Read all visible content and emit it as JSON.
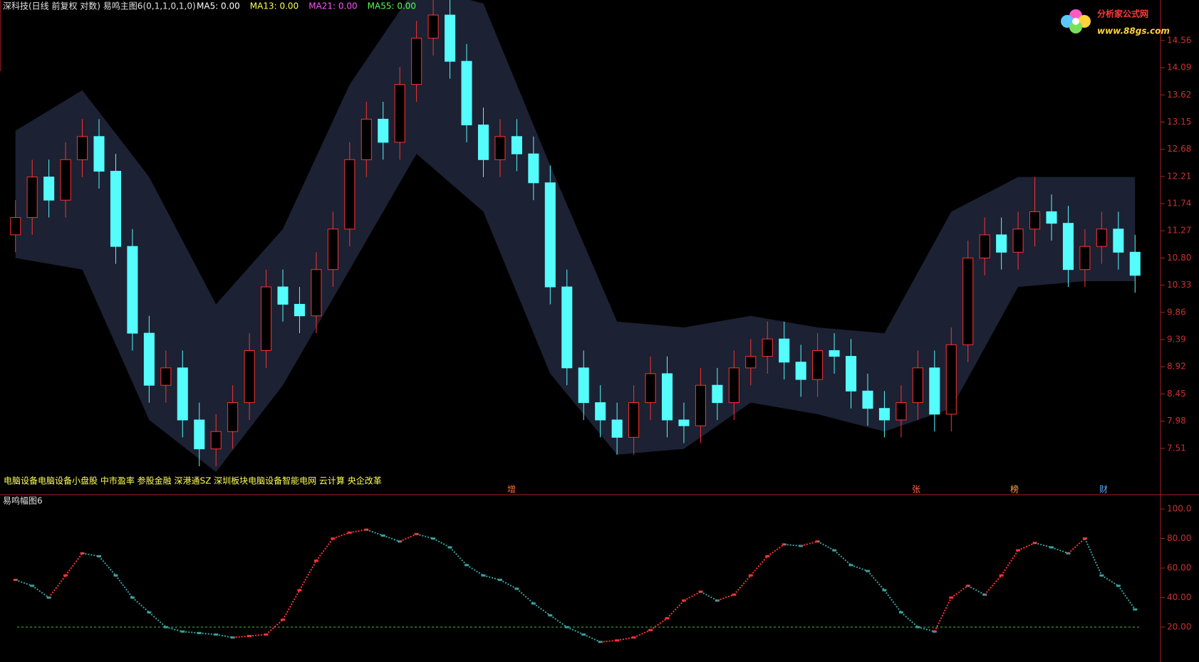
{
  "header": {
    "title": "深科技(日线 前复权 对数) 易鸣主图6(0,1,1,0,1,0)",
    "ma_labels": [
      {
        "text": "MA5: 0.00",
        "color": "#ffffff"
      },
      {
        "text": "MA13: 0.00",
        "color": "#ffff54"
      },
      {
        "text": "MA21: 0.00",
        "color": "#ff54ff"
      },
      {
        "text": "MA55: 0.00",
        "color": "#54ff54"
      }
    ]
  },
  "logo": {
    "name": "分析家公式网",
    "url": "www.88gs.com"
  },
  "concepts": "电脑设备电脑设备小盘股 中市盈率 参股金融 深港通SZ 深圳板块电脑设备智能电网 云计算 央企改革",
  "tags": [
    "增",
    "张",
    "榜",
    "财"
  ],
  "chart_data": [
    {
      "type": "candlestick",
      "open": [
        11.2,
        11.5,
        12.2,
        11.8,
        12.5,
        12.9,
        12.3,
        11.0,
        9.5,
        8.6,
        8.9,
        8.0,
        7.5,
        7.8,
        8.3,
        9.2,
        10.3,
        10.0,
        9.8,
        10.6,
        11.3,
        12.5,
        13.2,
        12.8,
        13.8,
        14.6,
        15.0,
        14.2,
        13.1,
        12.5,
        12.9,
        12.6,
        12.1,
        10.3,
        8.9,
        8.3,
        8.0,
        7.7,
        8.3,
        8.8,
        8.0,
        7.9,
        8.6,
        8.3,
        8.9,
        9.1,
        9.4,
        9.0,
        8.7,
        9.2,
        9.1,
        8.5,
        8.2,
        8.0,
        8.3,
        8.9,
        8.1,
        9.3,
        10.8,
        11.2,
        10.9,
        11.3,
        11.6,
        11.4,
        10.6,
        11.0,
        11.3,
        10.9
      ],
      "high": [
        11.8,
        12.5,
        12.5,
        12.8,
        13.2,
        13.2,
        12.6,
        11.3,
        9.8,
        9.2,
        9.2,
        8.3,
        8.1,
        8.6,
        9.5,
        10.6,
        10.6,
        10.3,
        10.9,
        11.6,
        12.8,
        13.5,
        13.5,
        14.1,
        14.9,
        15.3,
        15.3,
        14.5,
        13.4,
        13.2,
        13.2,
        12.9,
        12.4,
        10.6,
        9.2,
        8.6,
        8.3,
        8.6,
        9.1,
        9.1,
        8.3,
        8.9,
        8.9,
        9.2,
        9.4,
        9.7,
        9.7,
        9.3,
        9.5,
        9.5,
        9.4,
        8.8,
        8.5,
        8.6,
        9.2,
        9.2,
        9.6,
        11.1,
        11.5,
        11.5,
        11.6,
        12.2,
        11.9,
        11.7,
        11.3,
        11.6,
        11.6,
        11.2
      ],
      "low": [
        10.9,
        11.2,
        11.5,
        11.5,
        12.2,
        12.0,
        10.7,
        9.2,
        8.3,
        8.3,
        7.7,
        7.2,
        7.2,
        7.5,
        8.0,
        8.9,
        9.7,
        9.5,
        9.5,
        10.3,
        11.0,
        12.2,
        12.5,
        12.5,
        13.5,
        14.3,
        13.9,
        12.8,
        12.2,
        12.2,
        12.3,
        11.8,
        10.0,
        8.6,
        8.0,
        7.7,
        7.4,
        7.4,
        8.0,
        7.7,
        7.6,
        7.6,
        8.0,
        8.0,
        8.6,
        8.8,
        8.7,
        8.4,
        8.4,
        8.8,
        8.2,
        7.9,
        7.7,
        7.7,
        8.0,
        7.8,
        7.8,
        9.0,
        10.5,
        10.6,
        10.6,
        11.0,
        11.1,
        10.3,
        10.3,
        10.7,
        10.6,
        10.2
      ],
      "close": [
        11.5,
        12.2,
        11.8,
        12.5,
        12.9,
        12.3,
        11.0,
        9.5,
        8.6,
        8.9,
        8.0,
        7.5,
        7.8,
        8.3,
        9.2,
        10.3,
        10.0,
        9.8,
        10.6,
        11.3,
        12.5,
        13.2,
        12.8,
        13.8,
        14.6,
        15.0,
        14.2,
        13.1,
        12.5,
        12.9,
        12.6,
        12.1,
        10.3,
        8.9,
        8.3,
        8.0,
        7.7,
        8.3,
        8.8,
        8.0,
        7.9,
        8.6,
        8.3,
        8.9,
        9.1,
        9.4,
        9.0,
        8.7,
        9.2,
        9.1,
        8.5,
        8.2,
        8.0,
        8.3,
        8.9,
        8.1,
        9.3,
        10.8,
        11.2,
        10.9,
        11.3,
        11.6,
        11.4,
        10.6,
        11.0,
        11.3,
        10.9,
        10.5
      ],
      "up_color": "#ff3232",
      "down_color": "#54fcfc",
      "band": {
        "x": [
          0,
          4,
          8,
          12,
          16,
          20,
          24,
          28,
          32,
          36,
          40,
          44,
          48,
          52,
          56,
          60,
          64,
          67
        ],
        "upper": [
          13.0,
          13.7,
          12.2,
          10.0,
          11.3,
          13.8,
          15.5,
          15.2,
          12.4,
          9.7,
          9.6,
          9.8,
          9.6,
          9.5,
          11.6,
          12.2,
          12.2,
          12.2
        ],
        "lower": [
          10.8,
          10.6,
          8.0,
          7.1,
          8.6,
          10.6,
          12.6,
          11.6,
          8.8,
          7.4,
          7.5,
          8.3,
          8.1,
          7.8,
          8.2,
          10.3,
          10.4,
          10.4
        ],
        "color": "#1c2133"
      },
      "ylim": [
        6.72,
        15.26
      ],
      "yticks": [
        14.56,
        14.09,
        13.62,
        13.15,
        12.68,
        12.21,
        11.74,
        11.27,
        {
          "value": 10.8,
          "label": "10.80"
        },
        10.33,
        9.86,
        9.39,
        8.92,
        8.45,
        7.98,
        7.51
      ]
    },
    {
      "type": "line",
      "title": "易鸣幅图6",
      "values": [
        52,
        48,
        40,
        55,
        70,
        68,
        55,
        40,
        30,
        20,
        17,
        16,
        15,
        13,
        14,
        15,
        25,
        45,
        65,
        80,
        84,
        86,
        82,
        78,
        83,
        80,
        74,
        62,
        55,
        52,
        46,
        36,
        28,
        20,
        15,
        10,
        11,
        13,
        18,
        26,
        38,
        44,
        38,
        42,
        55,
        68,
        76,
        75,
        78,
        72,
        62,
        58,
        45,
        30,
        20,
        17,
        40,
        48,
        42,
        55,
        72,
        77,
        74,
        70,
        80,
        55,
        48,
        32
      ],
      "up_color": "#ff3232",
      "down_color": "#3aa0a0",
      "reference_line": 20,
      "reference_color": "#3cc83c",
      "ylim": [
        -3.6,
        105.8
      ],
      "yticks": [
        {
          "value": 100,
          "label": "100.0"
        },
        {
          "value": 80,
          "label": "80.00"
        },
        {
          "value": 60,
          "label": "60.00"
        },
        {
          "value": 40,
          "label": "40.00"
        },
        {
          "value": 20,
          "label": "20.00"
        }
      ]
    }
  ]
}
